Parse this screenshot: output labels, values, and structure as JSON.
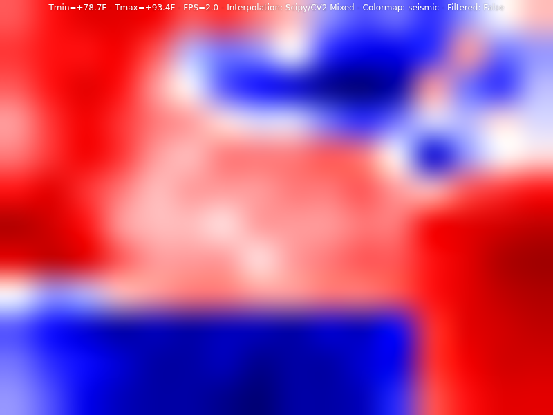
{
  "chart_data": {
    "type": "heatmap",
    "title": "Tmin=+78.7F - Tmax=+93.4F - FPS=2.0 - Interpolation: Scipy/CV2 Mixed - Colormap: seismic - Filtered: False",
    "color_range": [
      78.7,
      93.4
    ],
    "grid": false,
    "tick_labels": false,
    "cells": [
      [
        88.5,
        89.5,
        90.5,
        90.5,
        90,
        88.5,
        89,
        88,
        87,
        84.5,
        83.5,
        84,
        83,
        84.5,
        86,
        87
      ],
      [
        89,
        89.5,
        89.5,
        90,
        88.5,
        85,
        84,
        84.5,
        86,
        83,
        82,
        82,
        83,
        87.5,
        84,
        84.5
      ],
      [
        88.5,
        89.5,
        90.5,
        89.5,
        87.5,
        86,
        83.5,
        82.5,
        81.5,
        80,
        79.5,
        80.5,
        87.5,
        84,
        83,
        85
      ],
      [
        87.5,
        89,
        90,
        89,
        88,
        87.5,
        86.5,
        85.5,
        85.5,
        84,
        83,
        84,
        85.5,
        85,
        86.5,
        85.5
      ],
      [
        88,
        89,
        90,
        89,
        87.5,
        87,
        88,
        88,
        88,
        88.5,
        88,
        86,
        81.5,
        84.5,
        86,
        86.5
      ],
      [
        89.5,
        90.5,
        89,
        88,
        87,
        87.5,
        87.5,
        87.5,
        88,
        88,
        88.5,
        87.5,
        87,
        88.5,
        89,
        89.5
      ],
      [
        92,
        91,
        89.5,
        87.5,
        87,
        87,
        86.5,
        87.5,
        87.5,
        87.5,
        88,
        88,
        90,
        90.5,
        91,
        91.5
      ],
      [
        90.5,
        91.5,
        90.5,
        88.5,
        87.5,
        87.5,
        87.5,
        86.5,
        87.5,
        88,
        88.5,
        88.5,
        89.5,
        90.5,
        92,
        92.5
      ],
      [
        86,
        84.5,
        85,
        87,
        87.5,
        88,
        88,
        87.5,
        87.5,
        88,
        88,
        88.5,
        89.5,
        90.5,
        91.5,
        92
      ],
      [
        83.5,
        82.5,
        81.5,
        80.5,
        81,
        80.5,
        81,
        81,
        80.5,
        81.5,
        81,
        82.5,
        89,
        90.5,
        91,
        91.5
      ],
      [
        84,
        83,
        82.5,
        81.5,
        80.5,
        80.5,
        81,
        80,
        80.5,
        80.5,
        81.5,
        82,
        89,
        90,
        91,
        91
      ],
      [
        84.5,
        83.5,
        82,
        81,
        80.5,
        80.5,
        80,
        79.5,
        80.5,
        80.5,
        81,
        83,
        88.5,
        89.5,
        90.5,
        90.5
      ]
    ]
  }
}
